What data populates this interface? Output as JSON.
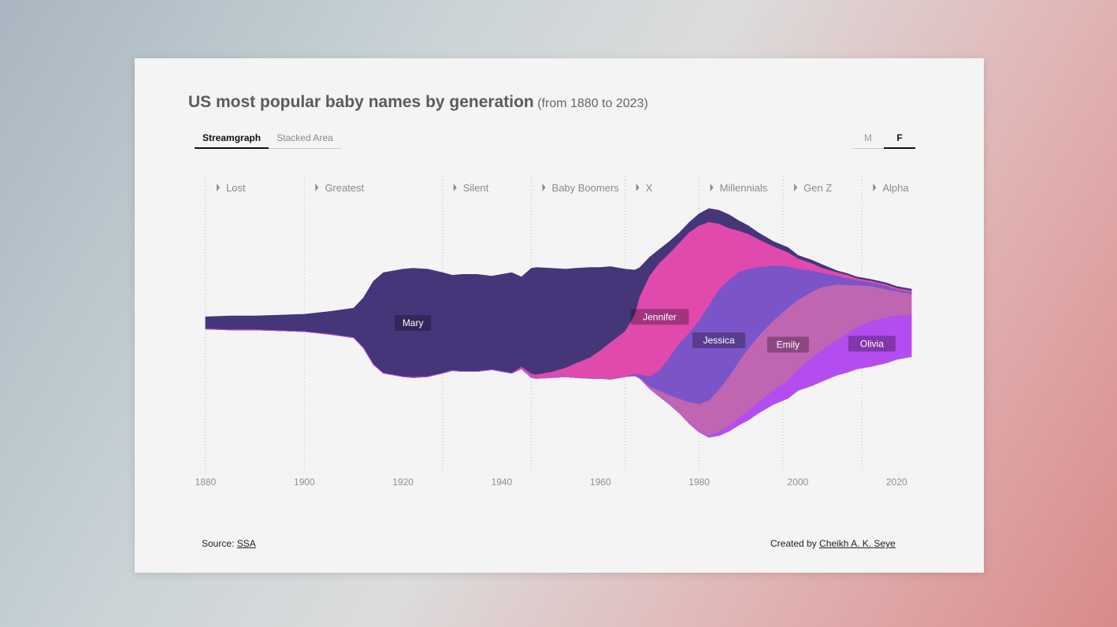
{
  "title": "US most popular baby names by generation",
  "subtitle": "(from 1880 to 2023)",
  "tabs": [
    {
      "label": "Streamgraph",
      "active": true
    },
    {
      "label": "Stacked Area",
      "active": false
    }
  ],
  "sex_buttons": [
    {
      "label": "M",
      "active": false
    },
    {
      "label": "F",
      "active": true
    }
  ],
  "footer": {
    "source_prefix": "Source: ",
    "source_link": "SSA",
    "credit_prefix": "Created by ",
    "credit_link": "Cheikh A. K. Seye"
  },
  "chart_data": {
    "type": "area",
    "layout": "streamgraph",
    "xlim": [
      1880,
      2023
    ],
    "x_ticks": [
      "1880",
      "1900",
      "1920",
      "1940",
      "1960",
      "1980",
      "2000",
      "2020"
    ],
    "generations": [
      {
        "name": "Lost",
        "start": 1880
      },
      {
        "name": "Greatest",
        "start": 1900
      },
      {
        "name": "Silent",
        "start": 1928
      },
      {
        "name": "Baby Boomers",
        "start": 1946
      },
      {
        "name": "X",
        "start": 1965
      },
      {
        "name": "Millennials",
        "start": 1980
      },
      {
        "name": "Gen Z",
        "start": 1997
      },
      {
        "name": "Alpha",
        "start": 2013
      }
    ],
    "x": [
      1880,
      1885,
      1890,
      1895,
      1900,
      1905,
      1910,
      1912,
      1914,
      1916,
      1918,
      1920,
      1922,
      1925,
      1928,
      1930,
      1932,
      1935,
      1938,
      1940,
      1942,
      1944,
      1946,
      1947,
      1950,
      1953,
      1955,
      1958,
      1960,
      1962,
      1965,
      1967,
      1968,
      1970,
      1972,
      1974,
      1976,
      1978,
      1980,
      1982,
      1984,
      1986,
      1988,
      1990,
      1992,
      1995,
      1998,
      2000,
      2003,
      2005,
      2008,
      2010,
      2012,
      2015,
      2018,
      2020,
      2023
    ],
    "series": [
      {
        "name": "Mary",
        "color": "#45367a",
        "values": [
          7,
          8,
          8,
          9,
          10,
          13,
          17,
          29,
          48,
          58,
          60,
          62,
          63,
          62,
          58,
          55,
          56,
          56,
          54,
          56,
          58,
          52,
          61,
          62,
          60,
          57,
          55,
          52,
          48,
          44,
          36,
          26,
          17,
          11,
          8,
          7,
          6,
          6,
          7,
          8,
          8,
          8,
          6,
          5,
          4,
          3,
          3,
          2,
          2,
          2,
          1,
          1,
          1,
          1,
          1,
          1,
          1
        ]
      },
      {
        "name": "Jennifer",
        "color": "#e04aad",
        "values": [
          0,
          0,
          0,
          0,
          0,
          0,
          0,
          0,
          0,
          0,
          0,
          0,
          0,
          0,
          0,
          0,
          0,
          0,
          0,
          0,
          0,
          1,
          2,
          2,
          3,
          5,
          8,
          12,
          16,
          21,
          26,
          34,
          45,
          58,
          62,
          60,
          58,
          58,
          55,
          48,
          38,
          30,
          24,
          20,
          16,
          11,
          8,
          6,
          4,
          3,
          2,
          2,
          1,
          1,
          1,
          1,
          1
        ]
      },
      {
        "name": "Jessica",
        "color": "#7b55c8",
        "values": [
          0,
          0,
          0,
          0,
          0,
          0,
          0,
          0,
          0,
          0,
          0,
          0,
          0,
          0,
          0,
          0,
          0,
          0,
          0,
          0,
          0,
          0,
          0,
          0,
          0,
          0,
          0,
          0,
          0,
          0,
          0,
          1,
          2,
          6,
          12,
          22,
          32,
          40,
          48,
          55,
          58,
          56,
          52,
          46,
          40,
          32,
          24,
          18,
          12,
          8,
          5,
          4,
          3,
          2,
          2,
          1,
          1
        ]
      },
      {
        "name": "Emily",
        "color": "#c065b2",
        "values": [
          0,
          0,
          0,
          0,
          0,
          0,
          0,
          0,
          0,
          0,
          0,
          0,
          0,
          0,
          0,
          0,
          0,
          0,
          0,
          0,
          0,
          0,
          0,
          0,
          0,
          0,
          0,
          0,
          0,
          0,
          0,
          0,
          0,
          1,
          3,
          5,
          8,
          12,
          16,
          20,
          24,
          28,
          32,
          36,
          38,
          40,
          42,
          40,
          38,
          36,
          32,
          28,
          24,
          20,
          16,
          14,
          12
        ]
      },
      {
        "name": "Olivia",
        "color": "#b54cef",
        "values": [
          0,
          0,
          0,
          0,
          0,
          0,
          0,
          0,
          0,
          0,
          0,
          0,
          0,
          0,
          0,
          0,
          0,
          0,
          0,
          0,
          0,
          0,
          0,
          0,
          0,
          0,
          0,
          0,
          0,
          0,
          0,
          0,
          0,
          0,
          0,
          0,
          0,
          0,
          0,
          1,
          2,
          3,
          4,
          5,
          6,
          8,
          10,
          12,
          16,
          18,
          20,
          22,
          24,
          26,
          26,
          25,
          24
        ]
      }
    ]
  }
}
